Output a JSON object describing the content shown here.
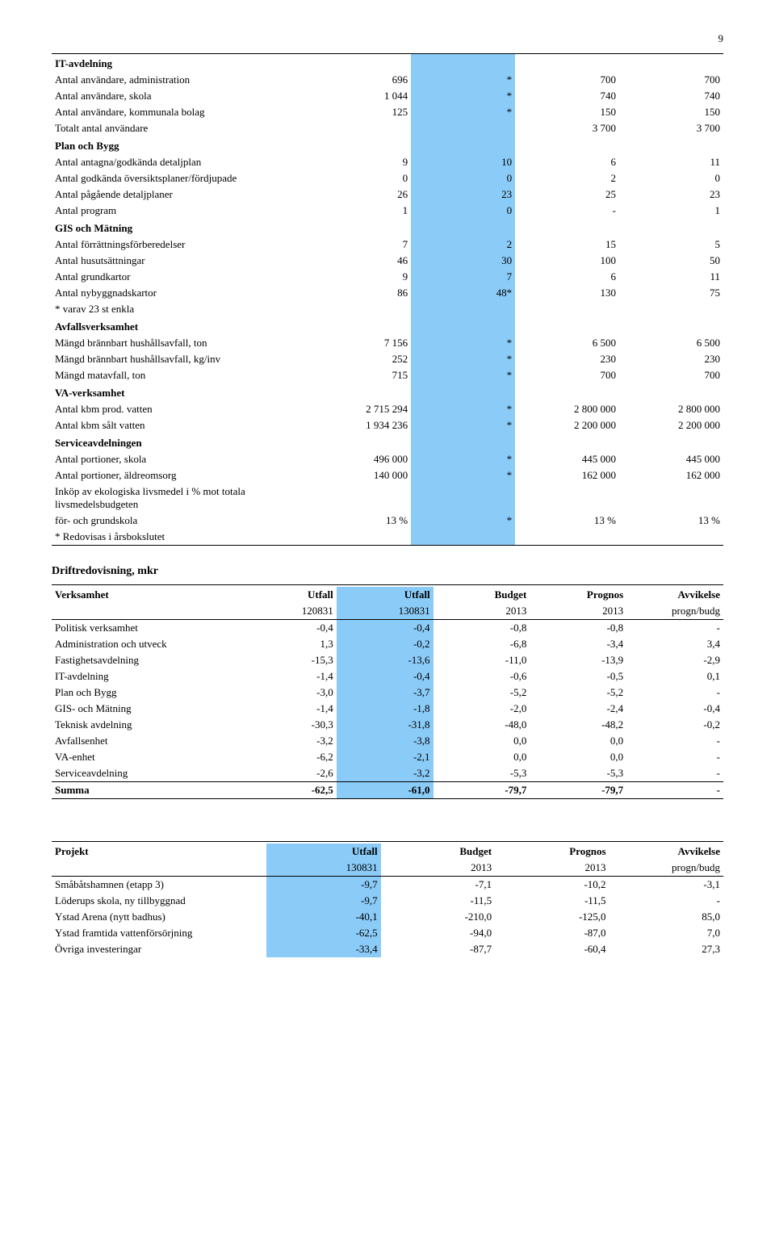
{
  "page_number": "9",
  "highlight_color": "#8bcbf7",
  "table1": {
    "sections": [
      {
        "title": "IT-avdelning",
        "rows": [
          {
            "label": "Antal användare, administration",
            "c1": "696",
            "c2": "*",
            "c3": "700",
            "c4": "700"
          },
          {
            "label": "Antal användare, skola",
            "c1": "1 044",
            "c2": "*",
            "c3": "740",
            "c4": "740"
          },
          {
            "label": "Antal användare, kommunala bolag",
            "c1": "125",
            "c2": "*",
            "c3": "150",
            "c4": "150"
          },
          {
            "label": "Totalt antal användare",
            "c1": "",
            "c2": "",
            "c3": "3 700",
            "c4": "3 700"
          }
        ]
      },
      {
        "title": "Plan och Bygg",
        "rows": [
          {
            "label": "Antal antagna/godkända detaljplan",
            "c1": "9",
            "c2": "10",
            "c3": "6",
            "c4": "11"
          },
          {
            "label": "Antal godkända översiktsplaner/fördjupade",
            "c1": "0",
            "c2": "0",
            "c3": "2",
            "c4": "0"
          },
          {
            "label": "Antal pågående detaljplaner",
            "c1": "26",
            "c2": "23",
            "c3": "25",
            "c4": "23"
          },
          {
            "label": "Antal program",
            "c1": "1",
            "c2": "0",
            "c3": "-",
            "c4": "1"
          }
        ]
      },
      {
        "title": "GIS och Mätning",
        "rows": [
          {
            "label": "Antal förrättningsförberedelser",
            "c1": "7",
            "c2": "2",
            "c3": "15",
            "c4": "5"
          },
          {
            "label": "Antal husutsättningar",
            "c1": "46",
            "c2": "30",
            "c3": "100",
            "c4": "50"
          },
          {
            "label": "Antal grundkartor",
            "c1": "9",
            "c2": "7",
            "c3": "6",
            "c4": "11"
          },
          {
            "label": "Antal nybyggnadskartor",
            "c1": "86",
            "c2": "48*",
            "c3": "130",
            "c4": "75"
          },
          {
            "label": "* varav 23 st enkla",
            "c1": "",
            "c2": "",
            "c3": "",
            "c4": ""
          }
        ]
      },
      {
        "title": "Avfallsverksamhet",
        "rows": [
          {
            "label": "Mängd brännbart hushållsavfall, ton",
            "c1": "7 156",
            "c2": "*",
            "c3": "6 500",
            "c4": "6 500"
          },
          {
            "label": "Mängd brännbart hushållsavfall, kg/inv",
            "c1": "252",
            "c2": "*",
            "c3": "230",
            "c4": "230"
          },
          {
            "label": "Mängd matavfall, ton",
            "c1": "715",
            "c2": "*",
            "c3": "700",
            "c4": "700"
          }
        ]
      },
      {
        "title": "VA-verksamhet",
        "rows": [
          {
            "label": "Antal kbm prod. vatten",
            "c1": "2 715 294",
            "c2": "*",
            "c3": "2 800 000",
            "c4": "2 800 000"
          },
          {
            "label": "Antal kbm sålt vatten",
            "c1": "1 934 236",
            "c2": "*",
            "c3": "2 200 000",
            "c4": "2 200 000"
          }
        ]
      },
      {
        "title": "Serviceavdelningen",
        "rows": [
          {
            "label": "Antal portioner, skola",
            "c1": "496 000",
            "c2": "*",
            "c3": "445 000",
            "c4": "445 000"
          },
          {
            "label": "Antal portioner, äldreomsorg",
            "c1": "140 000",
            "c2": "*",
            "c3": "162 000",
            "c4": "162 000"
          },
          {
            "label": "Inköp av ekologiska livsmedel i % mot totala livsmedelsbudgeten",
            "c1": "",
            "c2": "",
            "c3": "",
            "c4": ""
          },
          {
            "label": "för- och grundskola",
            "c1": "13 %",
            "c2": "*",
            "c3": "13 %",
            "c4": "13 %"
          },
          {
            "label": "* Redovisas i årsbokslutet",
            "c1": "",
            "c2": "",
            "c3": "",
            "c4": ""
          }
        ]
      }
    ]
  },
  "drift_title": "Driftredovisning, mkr",
  "table2": {
    "header": {
      "c0": "Verksamhet",
      "c1": "Utfall",
      "c1b": "120831",
      "c2": "Utfall",
      "c2b": "130831",
      "c3": "Budget",
      "c3b": "2013",
      "c4": "Prognos",
      "c4b": "2013",
      "c5": "Avvikelse",
      "c5b": "progn/budg"
    },
    "rows": [
      {
        "label": "Politisk verksamhet",
        "c1": "-0,4",
        "c2": "-0,4",
        "c3": "-0,8",
        "c4": "-0,8",
        "c5": "-"
      },
      {
        "label": "Administration och utveck",
        "c1": "1,3",
        "c2": "-0,2",
        "c3": "-6,8",
        "c4": "-3,4",
        "c5": "3,4"
      },
      {
        "label": "Fastighetsavdelning",
        "c1": "-15,3",
        "c2": "-13,6",
        "c3": "-11,0",
        "c4": "-13,9",
        "c5": "-2,9"
      },
      {
        "label": "IT-avdelning",
        "c1": "-1,4",
        "c2": "-0,4",
        "c3": "-0,6",
        "c4": "-0,5",
        "c5": "0,1"
      },
      {
        "label": "Plan och Bygg",
        "c1": "-3,0",
        "c2": "-3,7",
        "c3": "-5,2",
        "c4": "-5,2",
        "c5": "-"
      },
      {
        "label": "GIS- och Mätning",
        "c1": "-1,4",
        "c2": "-1,8",
        "c3": "-2,0",
        "c4": "-2,4",
        "c5": "-0,4"
      },
      {
        "label": "Teknisk avdelning",
        "c1": "-30,3",
        "c2": "-31,8",
        "c3": "-48,0",
        "c4": "-48,2",
        "c5": "-0,2"
      },
      {
        "label": "Avfallsenhet",
        "c1": "-3,2",
        "c2": "-3,8",
        "c3": "0,0",
        "c4": "0,0",
        "c5": "-"
      },
      {
        "label": "VA-enhet",
        "c1": "-6,2",
        "c2": "-2,1",
        "c3": "0,0",
        "c4": "0,0",
        "c5": "-"
      },
      {
        "label": "Serviceavdelning",
        "c1": "-2,6",
        "c2": "-3,2",
        "c3": "-5,3",
        "c4": "-5,3",
        "c5": "-"
      }
    ],
    "summa": {
      "label": "Summa",
      "c1": "-62,5",
      "c2": "-61,0",
      "c3": "-79,7",
      "c4": "-79,7",
      "c5": "-"
    }
  },
  "table3": {
    "header": {
      "c0": "Projekt",
      "c2": "Utfall",
      "c2b": "130831",
      "c3": "Budget",
      "c3b": "2013",
      "c4": "Prognos",
      "c4b": "2013",
      "c5": "Avvikelse",
      "c5b": "progn/budg"
    },
    "rows": [
      {
        "label": "Småbåtshamnen (etapp 3)",
        "c2": "-9,7",
        "c3": "-7,1",
        "c4": "-10,2",
        "c5": "-3,1"
      },
      {
        "label": "Löderups skola, ny tillbyggnad",
        "c2": "-9,7",
        "c3": "-11,5",
        "c4": "-11,5",
        "c5": "-"
      },
      {
        "label": "Ystad Arena (nytt badhus)",
        "c2": "-40,1",
        "c3": "-210,0",
        "c4": "-125,0",
        "c5": "85,0"
      },
      {
        "label": "Ystad framtida vattenförsörjning",
        "c2": "-62,5",
        "c3": "-94,0",
        "c4": "-87,0",
        "c5": "7,0"
      },
      {
        "label": "Övriga investeringar",
        "c2": "-33,4",
        "c3": "-87,7",
        "c4": "-60,4",
        "c5": "27,3"
      }
    ]
  }
}
